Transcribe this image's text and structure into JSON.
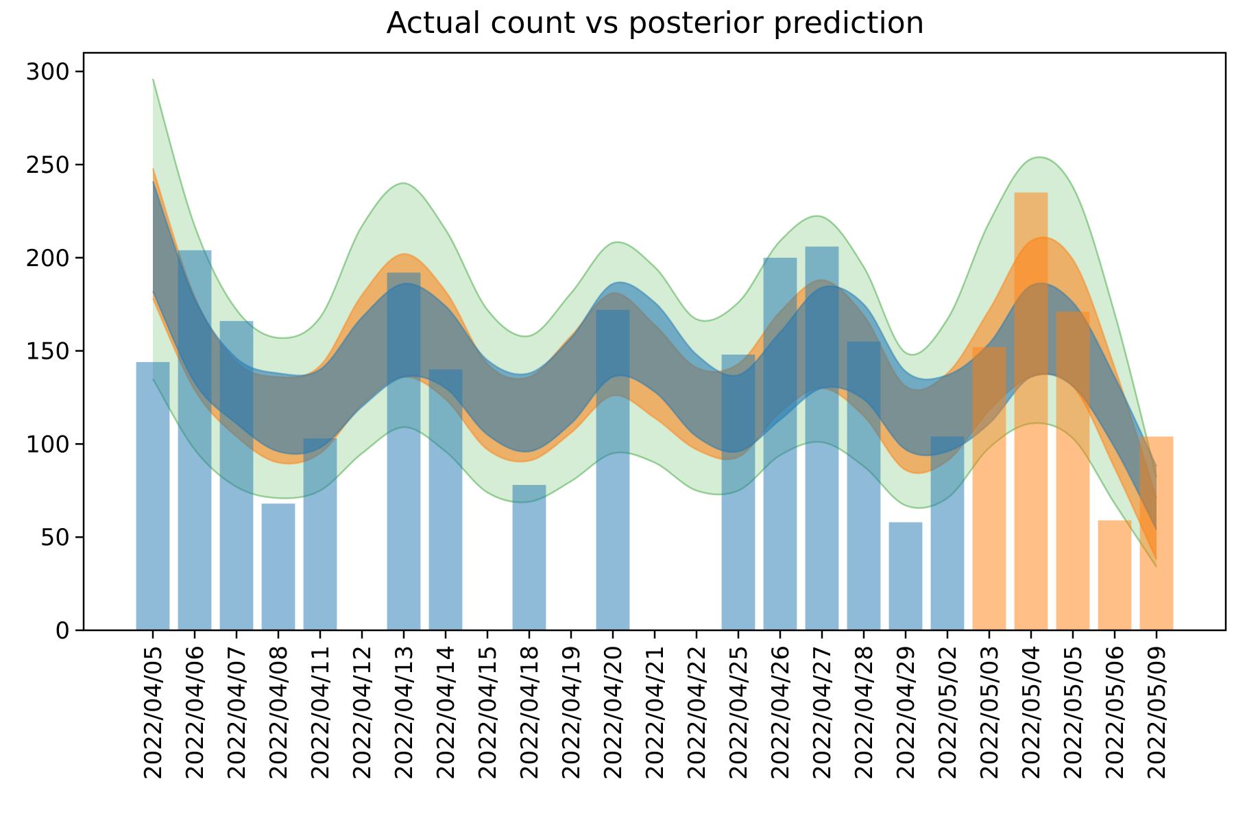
{
  "chart_data": {
    "type": "bar",
    "title": "Actual count vs posterior prediction",
    "xlabel": "",
    "ylabel": "",
    "ylim": [
      0,
      310
    ],
    "yticks": [
      0,
      50,
      100,
      150,
      200,
      250,
      300
    ],
    "grid": false,
    "categories": [
      "2022/04/05",
      "2022/04/06",
      "2022/04/07",
      "2022/04/08",
      "2022/04/11",
      "2022/04/12",
      "2022/04/13",
      "2022/04/14",
      "2022/04/15",
      "2022/04/18",
      "2022/04/19",
      "2022/04/20",
      "2022/04/21",
      "2022/04/22",
      "2022/04/25",
      "2022/04/26",
      "2022/04/27",
      "2022/04/28",
      "2022/04/29",
      "2022/05/02",
      "2022/05/03",
      "2022/05/04",
      "2022/05/05",
      "2022/05/06",
      "2022/05/09"
    ],
    "series": [
      {
        "kind": "bar",
        "color": "#1f77b4",
        "values": [
          144,
          204,
          166,
          68,
          103,
          0,
          192,
          140,
          0,
          78,
          0,
          172,
          0,
          0,
          148,
          200,
          206,
          155,
          58,
          104,
          null,
          null,
          null,
          null,
          null
        ]
      },
      {
        "kind": "bar",
        "color": "#ff7f0e",
        "values": [
          null,
          null,
          null,
          null,
          null,
          null,
          null,
          null,
          null,
          null,
          null,
          null,
          null,
          null,
          null,
          null,
          null,
          null,
          null,
          null,
          152,
          235,
          171,
          59,
          104
        ]
      }
    ],
    "bands": [
      {
        "color": "#2ca02c",
        "upper": [
          296,
          217,
          172,
          157,
          168,
          217,
          240,
          215,
          172,
          158,
          181,
          208,
          195,
          167,
          176,
          209,
          222,
          195,
          149,
          167,
          219,
          253,
          238,
          170,
          82
        ],
        "lower": [
          135,
          97,
          77,
          71,
          75,
          95,
          109,
          96,
          74,
          69,
          80,
          95,
          90,
          75,
          75,
          94,
          101,
          88,
          67,
          71,
          98,
          111,
          103,
          68,
          34
        ]
      },
      {
        "color": "#ff7f0e",
        "upper": [
          248,
          179,
          144,
          136,
          142,
          180,
          202,
          182,
          143,
          136,
          158,
          181,
          164,
          141,
          143,
          171,
          188,
          169,
          131,
          138,
          172,
          209,
          199,
          141,
          71
        ],
        "lower": [
          178,
          129,
          104,
          90,
          95,
          121,
          136,
          124,
          97,
          91,
          106,
          126,
          114,
          97,
          93,
          117,
          130,
          115,
          86,
          91,
          118,
          136,
          131,
          87,
          38
        ]
      },
      {
        "color": "#1f77b4",
        "upper": [
          241,
          178,
          146,
          138,
          140,
          168,
          186,
          174,
          145,
          138,
          157,
          186,
          176,
          148,
          137,
          160,
          184,
          175,
          139,
          137,
          154,
          185,
          176,
          136,
          88
        ],
        "lower": [
          182,
          133,
          111,
          96,
          98,
          120,
          136,
          130,
          105,
          96,
          111,
          136,
          128,
          104,
          96,
          113,
          130,
          124,
          97,
          96,
          111,
          136,
          131,
          98,
          54
        ]
      }
    ]
  }
}
